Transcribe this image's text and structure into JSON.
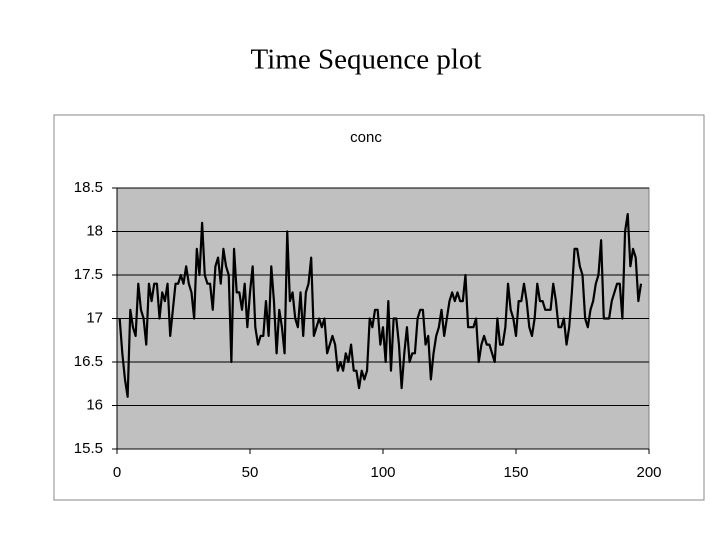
{
  "slide": {
    "title": "Time Sequence plot"
  },
  "chart_data": {
    "type": "line",
    "title": "conc",
    "color": "#000000",
    "grid": true,
    "plot_background": "#c0c0c0",
    "x": [
      1,
      2,
      3,
      4,
      5,
      6,
      7,
      8,
      9,
      10,
      11,
      12,
      13,
      14,
      15,
      16,
      17,
      18,
      19,
      20,
      21,
      22,
      23,
      24,
      25,
      26,
      27,
      28,
      29,
      30,
      31,
      32,
      33,
      34,
      35,
      36,
      37,
      38,
      39,
      40,
      41,
      42,
      43,
      44,
      45,
      46,
      47,
      48,
      49,
      50,
      51,
      52,
      53,
      54,
      55,
      56,
      57,
      58,
      59,
      60,
      61,
      62,
      63,
      64,
      65,
      66,
      67,
      68,
      69,
      70,
      71,
      72,
      73,
      74,
      75,
      76,
      77,
      78,
      79,
      80,
      81,
      82,
      83,
      84,
      85,
      86,
      87,
      88,
      89,
      90,
      91,
      92,
      93,
      94,
      95,
      96,
      97,
      98,
      99,
      100,
      101,
      102,
      103,
      104,
      105,
      106,
      107,
      108,
      109,
      110,
      111,
      112,
      113,
      114,
      115,
      116,
      117,
      118,
      119,
      120,
      121,
      122,
      123,
      124,
      125,
      126,
      127,
      128,
      129,
      130,
      131,
      132,
      133,
      134,
      135,
      136,
      137,
      138,
      139,
      140,
      141,
      142,
      143,
      144,
      145,
      146,
      147,
      148,
      149,
      150,
      151,
      152,
      153,
      154,
      155,
      156,
      157,
      158,
      159,
      160,
      161,
      162,
      163,
      164,
      165,
      166,
      167,
      168,
      169,
      170,
      171,
      172,
      173,
      174,
      175,
      176,
      177,
      178,
      179,
      180,
      181,
      182,
      183,
      184,
      185,
      186,
      187,
      188,
      189,
      190,
      191,
      192,
      193,
      194,
      195,
      196,
      197
    ],
    "values": [
      17.0,
      16.6,
      16.3,
      16.1,
      17.1,
      16.9,
      16.8,
      17.4,
      17.1,
      17.0,
      16.7,
      17.4,
      17.2,
      17.4,
      17.4,
      17.0,
      17.3,
      17.2,
      17.4,
      16.8,
      17.1,
      17.4,
      17.4,
      17.5,
      17.4,
      17.6,
      17.4,
      17.3,
      17.0,
      17.8,
      17.5,
      18.1,
      17.5,
      17.4,
      17.4,
      17.1,
      17.6,
      17.7,
      17.4,
      17.8,
      17.6,
      17.5,
      16.5,
      17.8,
      17.3,
      17.3,
      17.1,
      17.4,
      16.9,
      17.3,
      17.6,
      16.9,
      16.7,
      16.8,
      16.8,
      17.2,
      16.8,
      17.6,
      17.2,
      16.6,
      17.1,
      16.9,
      16.6,
      18.0,
      17.2,
      17.3,
      17.0,
      16.9,
      17.3,
      16.8,
      17.3,
      17.4,
      17.7,
      16.8,
      16.9,
      17.0,
      16.9,
      17.0,
      16.6,
      16.7,
      16.8,
      16.7,
      16.4,
      16.5,
      16.4,
      16.6,
      16.5,
      16.7,
      16.4,
      16.4,
      16.2,
      16.4,
      16.3,
      16.4,
      17.0,
      16.9,
      17.1,
      17.1,
      16.7,
      16.9,
      16.5,
      17.2,
      16.4,
      17.0,
      17.0,
      16.7,
      16.2,
      16.6,
      16.9,
      16.5,
      16.6,
      16.6,
      17.0,
      17.1,
      17.1,
      16.7,
      16.8,
      16.3,
      16.6,
      16.8,
      16.9,
      17.1,
      16.8,
      17.0,
      17.2,
      17.3,
      17.2,
      17.3,
      17.2,
      17.2,
      17.5,
      16.9,
      16.9,
      16.9,
      17.0,
      16.5,
      16.7,
      16.8,
      16.7,
      16.7,
      16.6,
      16.5,
      17.0,
      16.7,
      16.7,
      16.9,
      17.4,
      17.1,
      17.0,
      16.8,
      17.2,
      17.2,
      17.4,
      17.2,
      16.9,
      16.8,
      17.0,
      17.4,
      17.2,
      17.2,
      17.1,
      17.1,
      17.1,
      17.4,
      17.2,
      16.9,
      16.9,
      17.0,
      16.7,
      16.9,
      17.3,
      17.8,
      17.8,
      17.6,
      17.5,
      17.0,
      16.9,
      17.1,
      17.2,
      17.4,
      17.5,
      17.9,
      17.0,
      17.0,
      17.0,
      17.2,
      17.3,
      17.4,
      17.4,
      17.0,
      18.0,
      18.2,
      17.6,
      17.8,
      17.7,
      17.2,
      17.4
    ],
    "xlim": [
      0,
      200
    ],
    "xticks": [
      0,
      50,
      100,
      150,
      200
    ],
    "ylim": [
      15.5,
      18.5
    ],
    "yticks": [
      15.5,
      16,
      16.5,
      17,
      17.5,
      18,
      18.5
    ]
  }
}
